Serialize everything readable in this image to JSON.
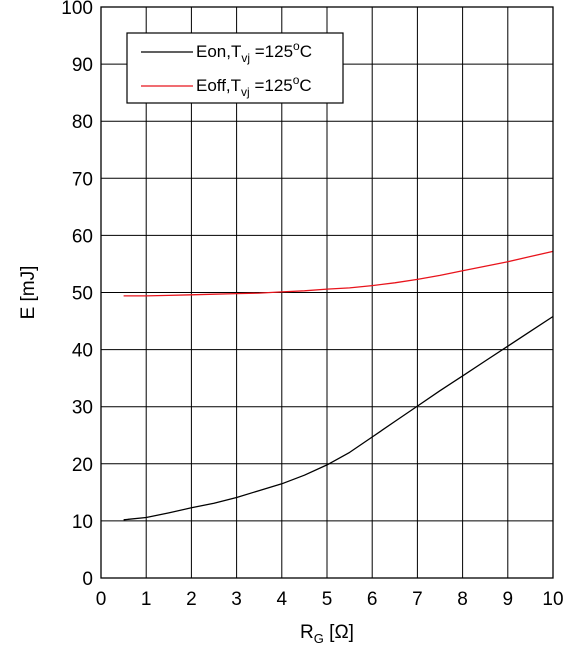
{
  "chart_data": {
    "type": "line",
    "xlabel": {
      "main": "R",
      "sub": "G",
      "unit": " [Ω]"
    },
    "ylabel": "E [mJ]",
    "xlim": [
      0,
      10
    ],
    "ylim": [
      0,
      100
    ],
    "xticks": [
      "0",
      "1",
      "2",
      "3",
      "4",
      "5",
      "6",
      "7",
      "8",
      "9",
      "10"
    ],
    "yticks": [
      "0",
      "10",
      "20",
      "30",
      "40",
      "50",
      "60",
      "70",
      "80",
      "90",
      "100"
    ],
    "grid": true,
    "legend_position": "top-left",
    "series": [
      {
        "name": "Eon,Tvj =125°C",
        "legend": {
          "pre": "Eon,T",
          "sub": "vj",
          "mid": " =125",
          "sup": "o",
          "post": "C"
        },
        "color": "#000000",
        "x": [
          0.5,
          1,
          1.5,
          2,
          2.5,
          3,
          3.5,
          4,
          4.5,
          5,
          5.5,
          6,
          6.5,
          7,
          7.5,
          8,
          8.5,
          9,
          9.5,
          10
        ],
        "y": [
          10.2,
          10.6,
          11.4,
          12.3,
          13.1,
          14.1,
          15.3,
          16.5,
          18.0,
          19.8,
          22.0,
          24.7,
          27.4,
          30.1,
          32.8,
          35.4,
          38.0,
          40.6,
          43.2,
          45.8
        ]
      },
      {
        "name": "Eoff,Tvj =125°C",
        "legend": {
          "pre": "Eoff,T",
          "sub": "vj",
          "mid": " =125",
          "sup": "o",
          "post": "C"
        },
        "color": "#e8141c",
        "x": [
          0.5,
          1,
          1.5,
          2,
          2.5,
          3,
          3.5,
          4,
          4.5,
          5,
          5.5,
          6,
          6.5,
          7,
          7.5,
          8,
          8.5,
          9,
          9.5,
          10
        ],
        "y": [
          49.4,
          49.4,
          49.5,
          49.6,
          49.7,
          49.8,
          49.9,
          50.1,
          50.3,
          50.6,
          50.8,
          51.2,
          51.7,
          52.3,
          53.0,
          53.8,
          54.6,
          55.4,
          56.3,
          57.2
        ]
      }
    ]
  }
}
